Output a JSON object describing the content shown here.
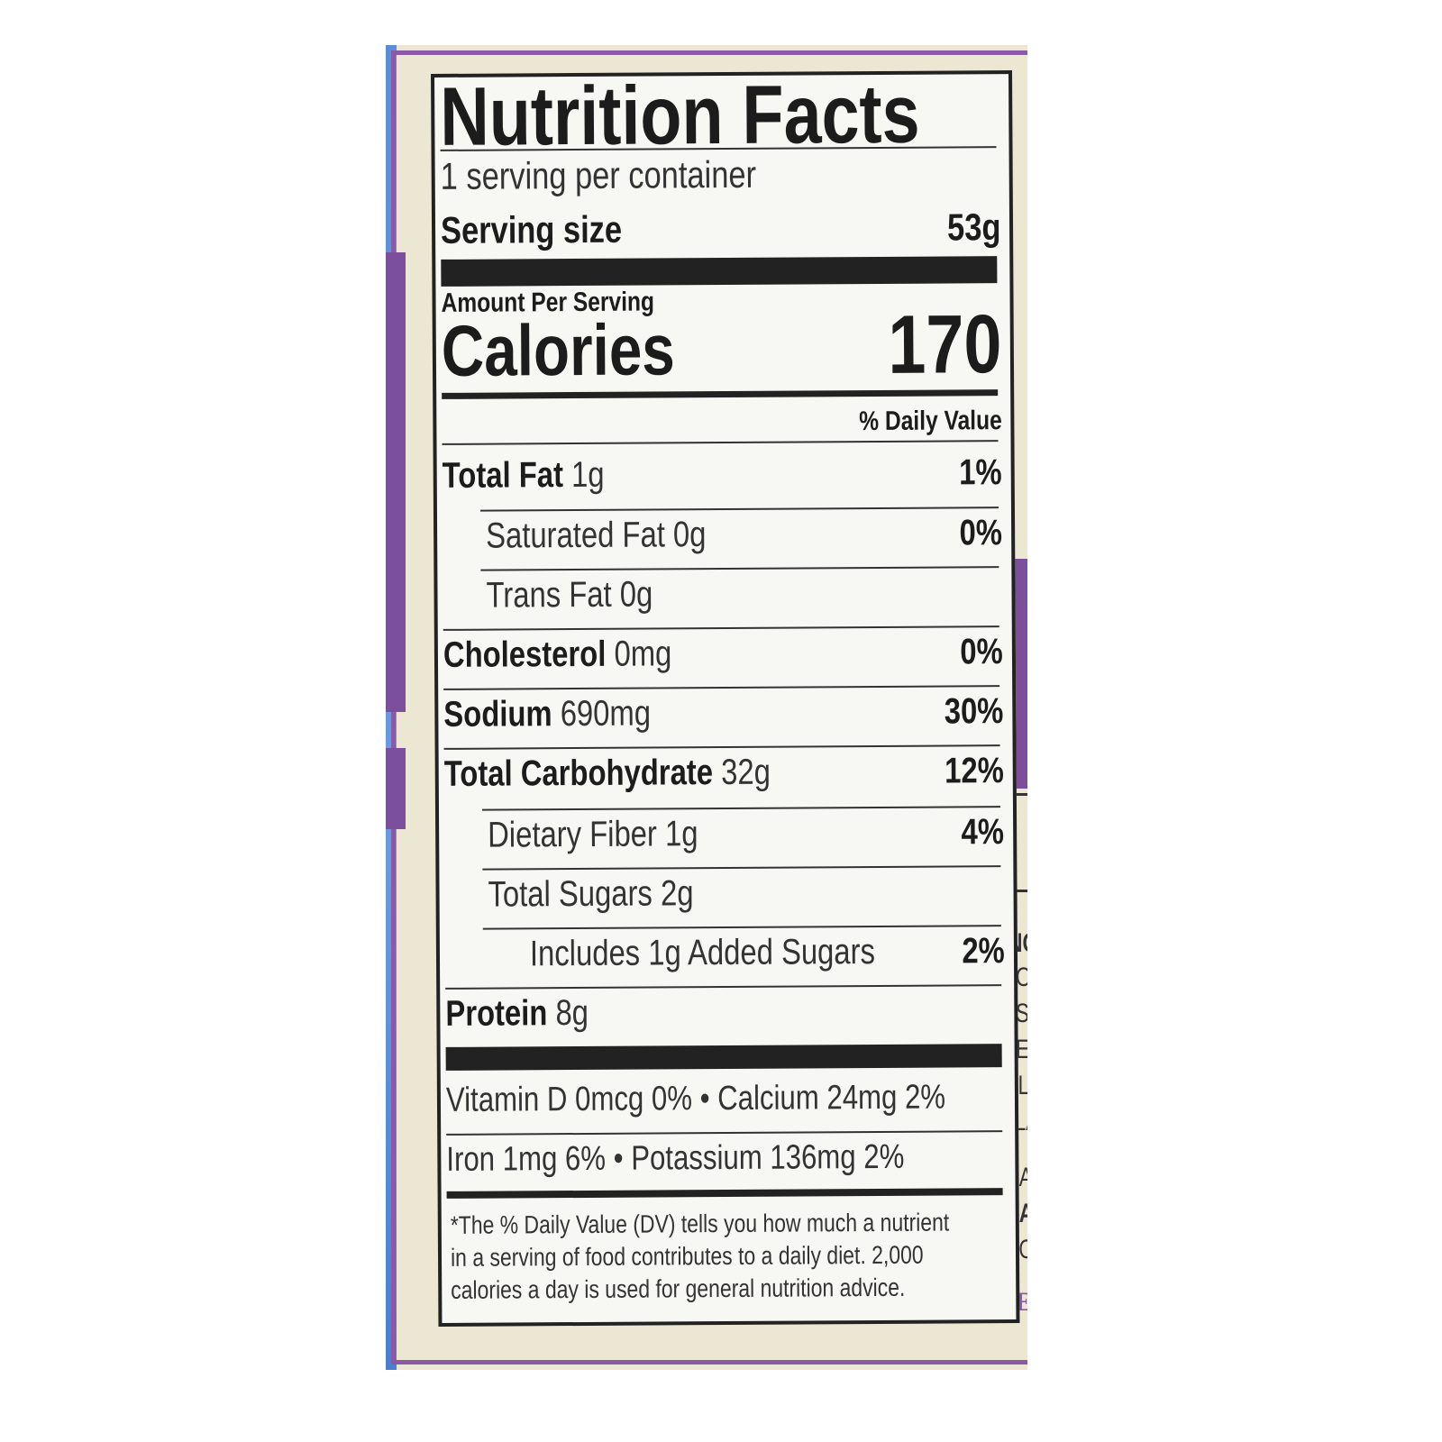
{
  "title": "Nutrition Facts",
  "servings_per_container": "1 serving per container",
  "serving_size": {
    "label": "Serving size",
    "value": "53g"
  },
  "amount_per_serving": "Amount Per Serving",
  "calories": {
    "label": "Calories",
    "value": "170"
  },
  "daily_value_header": "% Daily Value",
  "nutrients": [
    {
      "name": "Total Fat",
      "amount": "1g",
      "dv": "1%"
    },
    {
      "name": "Saturated Fat 0g",
      "amount": "",
      "dv": "0%"
    },
    {
      "name": "Trans Fat 0g",
      "amount": "",
      "dv": ""
    },
    {
      "name": "Cholesterol",
      "amount": "0mg",
      "dv": "0%"
    },
    {
      "name": "Sodium",
      "amount": "690mg",
      "dv": "30%"
    },
    {
      "name": "Total Carbohydrate",
      "amount": "32g",
      "dv": "12%"
    },
    {
      "name": "Dietary Fiber 1g",
      "amount": "",
      "dv": "4%"
    },
    {
      "name": "Total Sugars 2g",
      "amount": "",
      "dv": ""
    },
    {
      "name": "Includes 1g Added Sugars",
      "amount": "",
      "dv": "2%"
    },
    {
      "name": "Protein",
      "amount": "8g",
      "dv": ""
    }
  ],
  "vitamins": [
    "Vitamin D 0mcg 0% • Calcium 24mg 2%",
    "Iron 1mg 6% • Potassium 136mg 2%"
  ],
  "footnote": [
    "*The % Daily Value (DV) tells you how much a nutrient",
    "in a serving of food contributes to a daily diet. 2,000",
    "calories a day is used for general nutrition advice."
  ],
  "side_fragments": [
    "ING",
    "PO",
    "AS",
    "SE",
    "GL",
    "FLA",
    "MA",
    "MA",
    "P.O",
    "CE"
  ],
  "colors": {
    "purple": "#7b4f9c",
    "cream": "#ece7d2",
    "blue": "#5b8ed6"
  }
}
